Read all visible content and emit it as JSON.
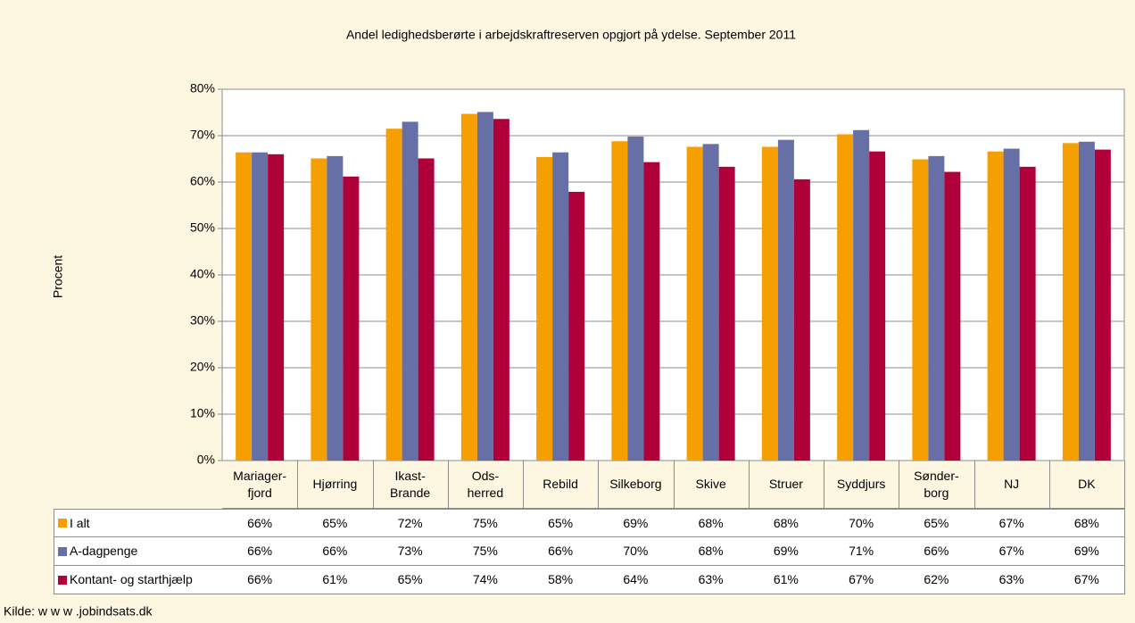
{
  "chart_data": {
    "type": "bar",
    "title": "Andel ledighedsberørte i arbejdskraftreserven opgjort på ydelse. September 2011",
    "y_label": "Procent",
    "source": "Kilde: w w w .jobindsats.dk",
    "categories": [
      "Mariager-\nfjord",
      "Hjørring",
      "Ikast-\nBrande",
      "Ods-\nherred",
      "Rebild",
      "Silkeborg",
      "Skive",
      "Struer",
      "Syddjurs",
      "Sønder-\nborg",
      "NJ",
      "DK"
    ],
    "series": [
      {
        "name": "I alt",
        "color": "#f5a000",
        "values": [
          66.4,
          65.1,
          71.5,
          74.7,
          65.4,
          68.8,
          67.6,
          67.6,
          70.3,
          64.9,
          66.6,
          68.4
        ],
        "value_labels": [
          "66%",
          "65%",
          "72%",
          "75%",
          "65%",
          "69%",
          "68%",
          "68%",
          "70%",
          "65%",
          "67%",
          "68%"
        ]
      },
      {
        "name": "A-dagpenge",
        "color": "#6670a6",
        "values": [
          66.4,
          65.6,
          73.0,
          75.1,
          66.4,
          69.8,
          68.2,
          69.1,
          71.2,
          65.6,
          67.2,
          68.7
        ],
        "value_labels": [
          "66%",
          "66%",
          "73%",
          "75%",
          "66%",
          "70%",
          "68%",
          "69%",
          "71%",
          "66%",
          "67%",
          "69%"
        ]
      },
      {
        "name": "Kontant- og starthjælp",
        "color": "#b0003a",
        "values": [
          66.0,
          61.2,
          65.1,
          73.6,
          57.9,
          64.3,
          63.3,
          60.6,
          66.6,
          62.2,
          63.3,
          67.0
        ],
        "value_labels": [
          "66%",
          "61%",
          "65%",
          "74%",
          "58%",
          "64%",
          "63%",
          "61%",
          "67%",
          "62%",
          "63%",
          "67%"
        ]
      }
    ],
    "ylim": [
      0,
      80
    ],
    "yticks": [
      {
        "value": 0,
        "label": "0%"
      },
      {
        "value": 10,
        "label": "10%"
      },
      {
        "value": 20,
        "label": "20%"
      },
      {
        "value": 30,
        "label": "30%"
      },
      {
        "value": 40,
        "label": "40%"
      },
      {
        "value": 50,
        "label": "50%"
      },
      {
        "value": 60,
        "label": "60%"
      },
      {
        "value": 70,
        "label": "70%"
      },
      {
        "value": 80,
        "label": "80%"
      }
    ],
    "grid": true
  }
}
